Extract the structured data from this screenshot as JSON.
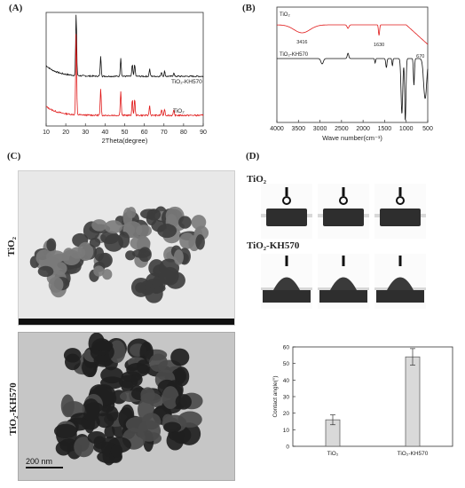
{
  "panels": {
    "A": {
      "label": "(A)"
    },
    "B": {
      "label": "(B)"
    },
    "C": {
      "label": "(C)"
    },
    "D": {
      "label": "(D)"
    }
  },
  "tem": {
    "top_label": "TiO₂",
    "bottom_label": "TiO₂-KH570",
    "scale_bar": "200 nm"
  },
  "contact": {
    "row1_title": "TiO₂",
    "row2_title": "TiO₂-KH570"
  },
  "chart_data": [
    {
      "id": "xrd",
      "type": "line",
      "xlabel": "2Theta(degree)",
      "ylabel": "",
      "xlim": [
        10,
        90
      ],
      "xticks": [
        10,
        20,
        30,
        40,
        50,
        60,
        70,
        80,
        90
      ],
      "series": [
        {
          "name": "TiO₂-KH570",
          "color": "#111111"
        },
        {
          "name": "TiO₂",
          "color": "#e01818"
        }
      ],
      "peaks_2theta": [
        25.3,
        37.8,
        48.0,
        53.9,
        55.1,
        62.7,
        68.8,
        70.3,
        75.0
      ],
      "peaks_rel_height": [
        1.0,
        0.32,
        0.3,
        0.19,
        0.2,
        0.12,
        0.07,
        0.08,
        0.06
      ]
    },
    {
      "id": "ftir",
      "type": "line",
      "xlabel": "Wave number(cm⁻¹)",
      "ylabel": "",
      "xlim": [
        4000,
        500
      ],
      "xticks": [
        4000,
        3500,
        3000,
        2500,
        2000,
        1500,
        1000,
        500
      ],
      "series": [
        {
          "name": "TiO₂",
          "color": "#e01818"
        },
        {
          "name": "TiO₂-KH570",
          "color": "#111111"
        }
      ],
      "annotations": [
        {
          "text": "3416",
          "x": 3416
        },
        {
          "text": "1630",
          "x": 1630
        },
        {
          "text": "670",
          "x": 670
        }
      ]
    },
    {
      "id": "contact-angle",
      "type": "bar",
      "categories": [
        "TiO₂",
        "TiO₂-KH570"
      ],
      "values": [
        16,
        54
      ],
      "errors": [
        3,
        5
      ],
      "ylabel": "Contact angle(°)",
      "ylim": [
        0,
        60
      ],
      "yticks": [
        0,
        10,
        20,
        30,
        40,
        50,
        60
      ]
    }
  ]
}
